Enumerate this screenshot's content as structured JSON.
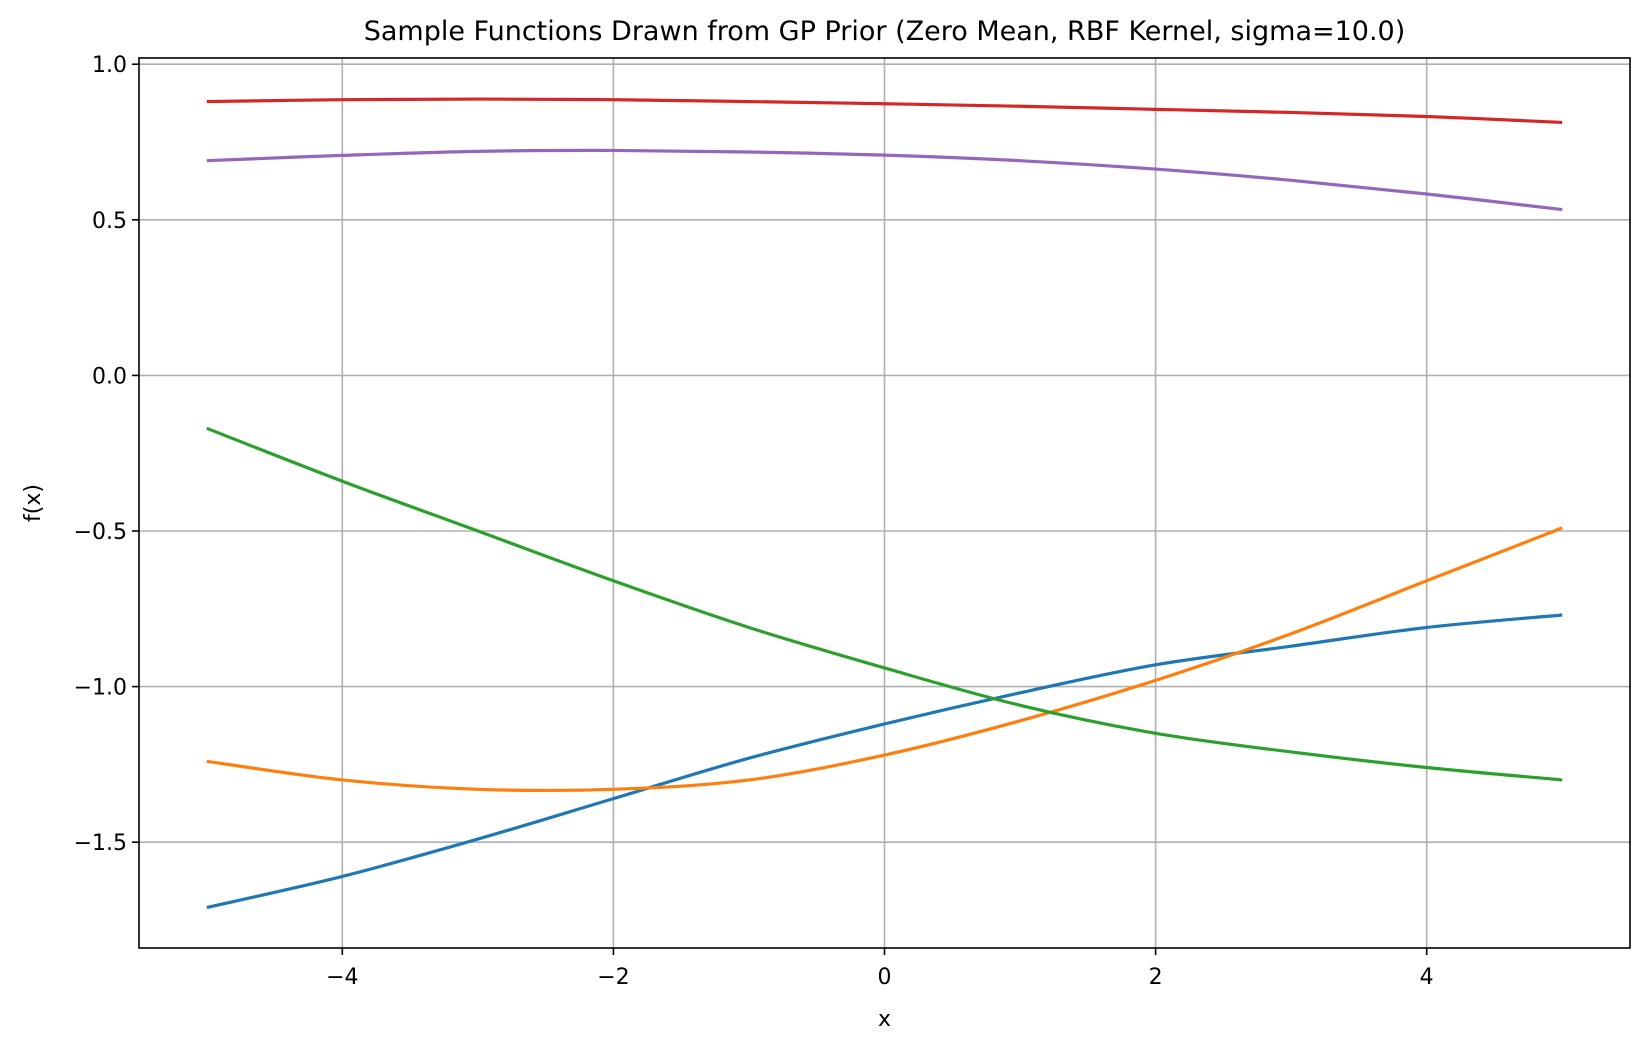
{
  "chart_data": {
    "type": "line",
    "title": "Sample Functions Drawn from GP Prior (Zero Mean, RBF Kernel, sigma=10.0)",
    "xlabel": "x",
    "ylabel": "f(x)",
    "xlim": [
      -5.5,
      5.5
    ],
    "ylim": [
      -1.84,
      1.02
    ],
    "grid": true,
    "x_ticks": [
      -4,
      -2,
      0,
      2,
      4
    ],
    "x_tick_labels": [
      "−4",
      "−2",
      "0",
      "2",
      "4"
    ],
    "y_ticks": [
      1.0,
      0.5,
      0.0,
      -0.5,
      -1.0,
      -1.5
    ],
    "y_tick_labels": [
      "1.0",
      "0.5",
      "0.0",
      "−0.5",
      "−1.0",
      "−1.5"
    ],
    "x": [
      -5,
      -4,
      -3,
      -2,
      -1,
      0,
      1,
      2,
      3,
      4,
      5
    ],
    "series": [
      {
        "color": "#1f77b4",
        "values": [
          -1.71,
          -1.61,
          -1.49,
          -1.36,
          -1.23,
          -1.12,
          -1.02,
          -0.93,
          -0.87,
          -0.81,
          -0.77
        ]
      },
      {
        "color": "#ff7f0e",
        "values": [
          -1.24,
          -1.3,
          -1.33,
          -1.33,
          -1.3,
          -1.22,
          -1.11,
          -0.98,
          -0.83,
          -0.66,
          -0.49
        ]
      },
      {
        "color": "#2ca02c",
        "values": [
          -0.17,
          -0.34,
          -0.5,
          -0.66,
          -0.81,
          -0.94,
          -1.06,
          -1.15,
          -1.21,
          -1.26,
          -1.3
        ]
      },
      {
        "color": "#d62728",
        "values": [
          0.88,
          0.886,
          0.888,
          0.886,
          0.88,
          0.873,
          0.865,
          0.855,
          0.845,
          0.832,
          0.813
        ]
      },
      {
        "color": "#9467bd",
        "values": [
          0.69,
          0.707,
          0.72,
          0.723,
          0.718,
          0.708,
          0.69,
          0.663,
          0.627,
          0.583,
          0.533
        ]
      }
    ]
  }
}
